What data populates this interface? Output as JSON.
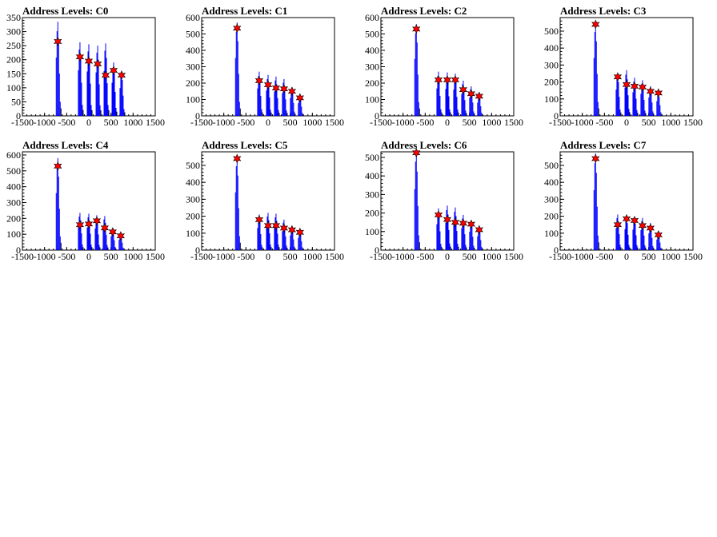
{
  "colors": {
    "histogram": "#0000ff",
    "peak_marker": "#ff0000",
    "background": "#ffffff"
  },
  "chart_data": [
    {
      "type": "bar",
      "title": "Address Levels: C0",
      "xlim": [
        -1500,
        1500
      ],
      "ylim": [
        0,
        350
      ],
      "xticks": [
        -1500,
        -1000,
        -500,
        0,
        500,
        1000,
        1500
      ],
      "xtick_labels": [
        "-1500",
        "-1000",
        "-500",
        "0",
        "500",
        "1000",
        "1500"
      ],
      "yticks": [
        0,
        50,
        100,
        150,
        200,
        250,
        300,
        350
      ],
      "ytick_labels": [
        "0",
        "50",
        "100",
        "150",
        "200",
        "250",
        "300",
        "350"
      ],
      "peaks": [
        {
          "x": -700,
          "y": 265
        },
        {
          "x": -200,
          "y": 210
        },
        {
          "x": 0,
          "y": 195
        },
        {
          "x": 200,
          "y": 185
        },
        {
          "x": 380,
          "y": 145
        },
        {
          "x": 560,
          "y": 162
        },
        {
          "x": 740,
          "y": 145
        }
      ],
      "spikes": [
        {
          "x": -700,
          "y": 335
        },
        {
          "x": -200,
          "y": 262
        },
        {
          "x": 0,
          "y": 255
        },
        {
          "x": 200,
          "y": 250
        },
        {
          "x": 380,
          "y": 258
        },
        {
          "x": 560,
          "y": 190
        },
        {
          "x": 740,
          "y": 160
        }
      ]
    },
    {
      "type": "bar",
      "title": "Address Levels: C1",
      "xlim": [
        -1500,
        1500
      ],
      "ylim": [
        0,
        600
      ],
      "xticks": [
        -1500,
        -1000,
        -500,
        0,
        500,
        1000,
        1500
      ],
      "xtick_labels": [
        "-1500",
        "-1000",
        "-500",
        "0",
        "500",
        "1000",
        "1500"
      ],
      "yticks": [
        0,
        100,
        200,
        300,
        400,
        500,
        600
      ],
      "ytick_labels": [
        "0",
        "100",
        "200",
        "300",
        "400",
        "500",
        "600"
      ],
      "peaks": [
        {
          "x": -700,
          "y": 535
        },
        {
          "x": -200,
          "y": 215
        },
        {
          "x": 0,
          "y": 190
        },
        {
          "x": 180,
          "y": 170
        },
        {
          "x": 360,
          "y": 165
        },
        {
          "x": 540,
          "y": 150
        },
        {
          "x": 720,
          "y": 110
        }
      ],
      "spikes": [
        {
          "x": -700,
          "y": 570
        },
        {
          "x": -200,
          "y": 270
        },
        {
          "x": 0,
          "y": 250
        },
        {
          "x": 180,
          "y": 240
        },
        {
          "x": 360,
          "y": 225
        },
        {
          "x": 540,
          "y": 175
        },
        {
          "x": 720,
          "y": 125
        }
      ]
    },
    {
      "type": "bar",
      "title": "Address Levels: C2",
      "xlim": [
        -1500,
        1500
      ],
      "ylim": [
        0,
        600
      ],
      "xticks": [
        -1500,
        -1000,
        -500,
        0,
        500,
        1000,
        1500
      ],
      "xtick_labels": [
        "-1500",
        "-1000",
        "-500",
        "0",
        "500",
        "1000",
        "1500"
      ],
      "yticks": [
        0,
        100,
        200,
        300,
        400,
        500,
        600
      ],
      "ytick_labels": [
        "0",
        "100",
        "200",
        "300",
        "400",
        "500",
        "600"
      ],
      "peaks": [
        {
          "x": -700,
          "y": 530
        },
        {
          "x": -200,
          "y": 220
        },
        {
          "x": 0,
          "y": 220
        },
        {
          "x": 180,
          "y": 220
        },
        {
          "x": 360,
          "y": 160
        },
        {
          "x": 540,
          "y": 135
        },
        {
          "x": 720,
          "y": 120
        }
      ],
      "spikes": [
        {
          "x": -700,
          "y": 560
        },
        {
          "x": -200,
          "y": 270
        },
        {
          "x": 0,
          "y": 265
        },
        {
          "x": 180,
          "y": 258
        },
        {
          "x": 360,
          "y": 215
        },
        {
          "x": 540,
          "y": 180
        },
        {
          "x": 720,
          "y": 130
        }
      ]
    },
    {
      "type": "bar",
      "title": "Address Levels: C3",
      "xlim": [
        -1500,
        1500
      ],
      "ylim": [
        0,
        580
      ],
      "xticks": [
        -1500,
        -1000,
        -500,
        0,
        500,
        1000,
        1500
      ],
      "xtick_labels": [
        "-1500",
        "-1000",
        "-500",
        "0",
        "500",
        "1000",
        "1500"
      ],
      "yticks": [
        0,
        100,
        200,
        300,
        400,
        500
      ],
      "ytick_labels": [
        "0",
        "100",
        "200",
        "300",
        "400",
        "500"
      ],
      "peaks": [
        {
          "x": -700,
          "y": 540
        },
        {
          "x": -200,
          "y": 230
        },
        {
          "x": 0,
          "y": 185
        },
        {
          "x": 180,
          "y": 175
        },
        {
          "x": 360,
          "y": 170
        },
        {
          "x": 540,
          "y": 145
        },
        {
          "x": 720,
          "y": 135
        }
      ],
      "spikes": [
        {
          "x": -700,
          "y": 550
        },
        {
          "x": -200,
          "y": 250
        },
        {
          "x": 0,
          "y": 270
        },
        {
          "x": 180,
          "y": 225
        },
        {
          "x": 360,
          "y": 210
        },
        {
          "x": 540,
          "y": 175
        },
        {
          "x": 720,
          "y": 140
        }
      ]
    },
    {
      "type": "bar",
      "title": "Address Levels: C4",
      "xlim": [
        -1500,
        1500
      ],
      "ylim": [
        0,
        620
      ],
      "xticks": [
        -1500,
        -1000,
        -500,
        0,
        500,
        1000,
        1500
      ],
      "xtick_labels": [
        "-1500",
        "-1000",
        "-500",
        "0",
        "500",
        "1000",
        "1500"
      ],
      "yticks": [
        0,
        100,
        200,
        300,
        400,
        500,
        600
      ],
      "ytick_labels": [
        "0",
        "100",
        "200",
        "300",
        "400",
        "500",
        "600"
      ],
      "peaks": [
        {
          "x": -700,
          "y": 530
        },
        {
          "x": -200,
          "y": 160
        },
        {
          "x": 0,
          "y": 165
        },
        {
          "x": 180,
          "y": 185
        },
        {
          "x": 360,
          "y": 140
        },
        {
          "x": 540,
          "y": 115
        },
        {
          "x": 720,
          "y": 90
        }
      ],
      "spikes": [
        {
          "x": -700,
          "y": 580
        },
        {
          "x": -200,
          "y": 235
        },
        {
          "x": 0,
          "y": 230
        },
        {
          "x": 180,
          "y": 220
        },
        {
          "x": 360,
          "y": 215
        },
        {
          "x": 540,
          "y": 140
        },
        {
          "x": 720,
          "y": 105
        }
      ]
    },
    {
      "type": "bar",
      "title": "Address Levels: C5",
      "xlim": [
        -1500,
        1500
      ],
      "ylim": [
        0,
        580
      ],
      "xticks": [
        -1500,
        -1000,
        -500,
        0,
        500,
        1000,
        1500
      ],
      "xtick_labels": [
        "-1500",
        "-1000",
        "-500",
        "0",
        "500",
        "1000",
        "1500"
      ],
      "yticks": [
        0,
        100,
        200,
        300,
        400,
        500
      ],
      "ytick_labels": [
        "0",
        "100",
        "200",
        "300",
        "400",
        "500"
      ],
      "peaks": [
        {
          "x": -700,
          "y": 540
        },
        {
          "x": -200,
          "y": 180
        },
        {
          "x": 0,
          "y": 145
        },
        {
          "x": 180,
          "y": 145
        },
        {
          "x": 360,
          "y": 130
        },
        {
          "x": 540,
          "y": 120
        },
        {
          "x": 720,
          "y": 105
        }
      ],
      "spikes": [
        {
          "x": -700,
          "y": 550
        },
        {
          "x": -200,
          "y": 210
        },
        {
          "x": 0,
          "y": 220
        },
        {
          "x": 180,
          "y": 215
        },
        {
          "x": 360,
          "y": 180
        },
        {
          "x": 540,
          "y": 140
        },
        {
          "x": 720,
          "y": 115
        }
      ]
    },
    {
      "type": "bar",
      "title": "Address Levels: C6",
      "xlim": [
        -1500,
        1500
      ],
      "ylim": [
        0,
        530
      ],
      "xticks": [
        -1500,
        -1000,
        -500,
        0,
        500,
        1000,
        1500
      ],
      "xtick_labels": [
        "-1500",
        "-1000",
        "-500",
        "0",
        "500",
        "1000",
        "1500"
      ],
      "yticks": [
        0,
        100,
        200,
        300,
        400,
        500
      ],
      "ytick_labels": [
        "0",
        "100",
        "200",
        "300",
        "400",
        "500"
      ],
      "peaks": [
        {
          "x": -700,
          "y": 525
        },
        {
          "x": -200,
          "y": 190
        },
        {
          "x": 0,
          "y": 165
        },
        {
          "x": 180,
          "y": 150
        },
        {
          "x": 360,
          "y": 145
        },
        {
          "x": 540,
          "y": 140
        },
        {
          "x": 720,
          "y": 110
        }
      ],
      "spikes": [
        {
          "x": -700,
          "y": 530
        },
        {
          "x": -200,
          "y": 225
        },
        {
          "x": 0,
          "y": 240
        },
        {
          "x": 180,
          "y": 230
        },
        {
          "x": 360,
          "y": 190
        },
        {
          "x": 540,
          "y": 160
        },
        {
          "x": 720,
          "y": 120
        }
      ]
    },
    {
      "type": "bar",
      "title": "Address Levels: C7",
      "xlim": [
        -1500,
        1500
      ],
      "ylim": [
        0,
        580
      ],
      "xticks": [
        -1500,
        -1000,
        -500,
        0,
        500,
        1000,
        1500
      ],
      "xtick_labels": [
        "-1500",
        "-1000",
        "-500",
        "0",
        "500",
        "1000",
        "1500"
      ],
      "yticks": [
        0,
        100,
        200,
        300,
        400,
        500
      ],
      "ytick_labels": [
        "0",
        "100",
        "200",
        "300",
        "400",
        "500"
      ],
      "peaks": [
        {
          "x": -700,
          "y": 540
        },
        {
          "x": -200,
          "y": 150
        },
        {
          "x": 0,
          "y": 185
        },
        {
          "x": 180,
          "y": 175
        },
        {
          "x": 360,
          "y": 145
        },
        {
          "x": 540,
          "y": 130
        },
        {
          "x": 720,
          "y": 90
        }
      ],
      "spikes": [
        {
          "x": -700,
          "y": 570
        },
        {
          "x": -200,
          "y": 210
        },
        {
          "x": 0,
          "y": 200
        },
        {
          "x": 180,
          "y": 195
        },
        {
          "x": 360,
          "y": 190
        },
        {
          "x": 540,
          "y": 160
        },
        {
          "x": 720,
          "y": 100
        }
      ]
    }
  ]
}
